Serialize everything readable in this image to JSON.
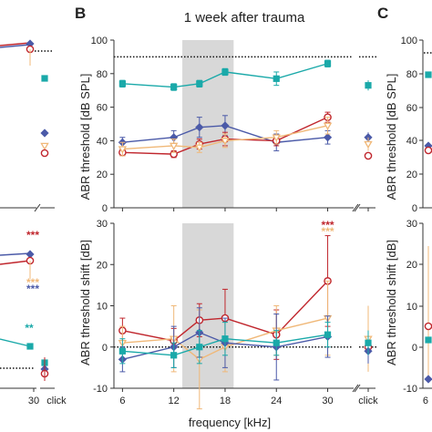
{
  "figure": {
    "panel_letters": [
      "B",
      "C"
    ],
    "title": "1 week after trauma",
    "xlabel": "frequency [kHz]",
    "left_clip": {
      "x_tick": "30",
      "click_label": "click"
    }
  },
  "colors": {
    "teal": "#1aa9a9",
    "navy": "#4b5aa8",
    "red": "#c0262d",
    "orange": "#f0b878",
    "shade": "#d8d8d8"
  },
  "chart_data": [
    {
      "type": "line",
      "panel": "B-top",
      "ylabel": "ABR threshold [dB SPL]",
      "ylim": [
        0,
        100
      ],
      "yticks": [
        0,
        20,
        40,
        60,
        80,
        100
      ],
      "x": [
        6,
        12,
        15,
        18,
        24,
        30
      ],
      "xticks": [
        "6",
        "12",
        "18",
        "24",
        "30"
      ],
      "click_label": "click",
      "reference_line": 90,
      "shaded_range": [
        13,
        19
      ],
      "series": [
        {
          "color_key": "teal",
          "marker": "square",
          "values": [
            74,
            72,
            74,
            81,
            77,
            86
          ],
          "errors": [
            2,
            2,
            2,
            2,
            4,
            2
          ],
          "click": {
            "value": 73,
            "error": 3
          }
        },
        {
          "color_key": "navy",
          "marker": "diamond",
          "values": [
            39,
            42,
            48,
            49,
            39,
            42
          ],
          "errors": [
            3,
            4,
            6,
            6,
            5,
            4
          ],
          "click": {
            "value": 42,
            "error": 3
          }
        },
        {
          "color_key": "red",
          "marker": "circle",
          "values": [
            33,
            32,
            38,
            41,
            40,
            54
          ],
          "errors": [
            2,
            2,
            3,
            4,
            3,
            3
          ],
          "click": {
            "value": 31,
            "error": 2
          }
        },
        {
          "color_key": "orange",
          "marker": "triangle",
          "values": [
            35,
            37,
            36,
            40,
            42,
            49
          ],
          "errors": [
            4,
            4,
            3,
            4,
            4,
            5
          ],
          "click": {
            "value": 38,
            "error": 4
          }
        }
      ]
    },
    {
      "type": "line",
      "panel": "B-bottom",
      "ylabel": "ABR threshold shift [dB]",
      "ylim": [
        -10,
        30
      ],
      "yticks": [
        -10,
        0,
        10,
        20,
        30
      ],
      "x": [
        6,
        12,
        15,
        18,
        24,
        30
      ],
      "xticks": [
        "6",
        "12",
        "18",
        "24",
        "30"
      ],
      "click_label": "click",
      "reference_line": 0,
      "shaded_range": [
        13,
        19
      ],
      "significance": [
        {
          "x": 30,
          "text": "***",
          "color_key": "red"
        },
        {
          "x": 30,
          "text": "***",
          "color_key": "orange"
        }
      ],
      "series": [
        {
          "color_key": "red",
          "marker": "circle",
          "values": [
            4,
            1.5,
            6.5,
            7,
            3,
            16
          ],
          "errors": [
            3,
            3,
            4,
            7,
            6,
            11
          ],
          "click": {
            "value": 0,
            "error": 2
          }
        },
        {
          "color_key": "orange",
          "marker": "triangle",
          "values": [
            1,
            2,
            -3,
            0,
            4,
            7
          ],
          "errors": [
            4,
            8,
            12,
            6,
            6,
            9
          ],
          "click": {
            "value": 2,
            "error": 8
          }
        },
        {
          "color_key": "navy",
          "marker": "diamond",
          "values": [
            -3,
            0,
            3.5,
            1,
            0,
            2.5
          ],
          "errors": [
            3,
            5,
            6,
            6,
            8,
            5
          ],
          "click": {
            "value": -1,
            "error": 3
          }
        },
        {
          "color_key": "teal",
          "marker": "square",
          "values": [
            -1,
            -2,
            0,
            2,
            1,
            3
          ],
          "errors": [
            3,
            3,
            4,
            4,
            3,
            3
          ],
          "click": {
            "value": 1,
            "error": 3
          }
        }
      ]
    },
    {
      "type": "line",
      "panel": "A-partial",
      "x_tick": "30",
      "click_label": "click",
      "significance": [
        {
          "text": "***",
          "color_key": "red"
        },
        {
          "text": "***",
          "color_key": "orange"
        },
        {
          "text": "***",
          "color_key": "navy"
        },
        {
          "text": "**",
          "color_key": "teal"
        }
      ]
    },
    {
      "type": "line",
      "panel": "C-partial",
      "ylabel_top": "ABR threshold [dB SPL]",
      "ylabel_bottom": "ABR threshold shift [dB]",
      "yticks_top": [
        "100",
        "80",
        "60",
        "40",
        "20",
        "0"
      ],
      "yticks_bottom": [
        "30",
        "20",
        "10",
        "0",
        "-10"
      ],
      "x_tick": "6"
    }
  ]
}
